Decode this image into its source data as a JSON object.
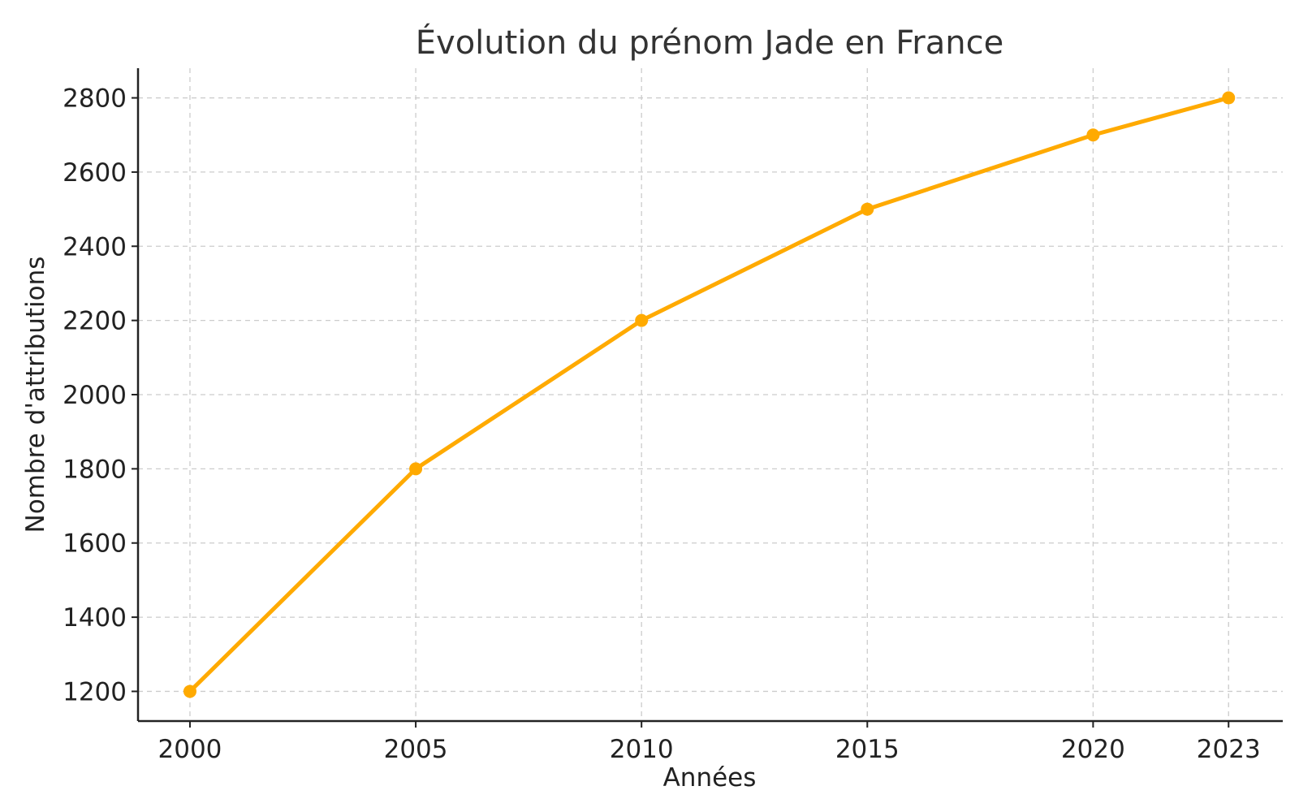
{
  "chart_data": {
    "type": "line",
    "title": "Évolution du prénom Jade en France",
    "xlabel": "Années",
    "ylabel": "Nombre d'attributions",
    "x": [
      2000,
      2005,
      2010,
      2015,
      2020,
      2023
    ],
    "xticks": [
      "2000",
      "2005",
      "2010",
      "2015",
      "2020",
      "2023"
    ],
    "yticks": [
      "1200",
      "1400",
      "1600",
      "1800",
      "2000",
      "2200",
      "2400",
      "2600",
      "2800"
    ],
    "ytick_values": [
      1200,
      1400,
      1600,
      1800,
      2000,
      2200,
      2400,
      2600,
      2800
    ],
    "xlim": [
      1998.85,
      2024.2
    ],
    "ylim": [
      1120,
      2880
    ],
    "series": [
      {
        "values": [
          1200,
          1800,
          2200,
          2500,
          2700,
          2800
        ],
        "color": "#FFAA00",
        "marker": "circle"
      }
    ],
    "grid": true,
    "legend": "none"
  }
}
